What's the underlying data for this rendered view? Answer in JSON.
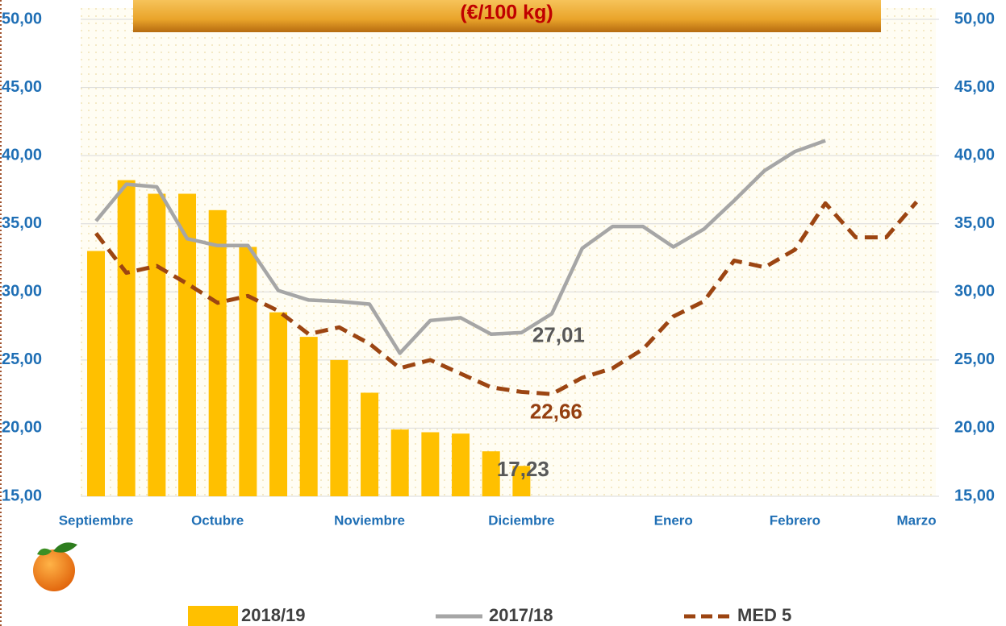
{
  "chart_data": {
    "type": "bar-line",
    "title": "(€/100 kg)",
    "categories": [
      "Septiembre",
      null,
      null,
      null,
      "Octubre",
      null,
      null,
      null,
      null,
      "Noviembre",
      null,
      null,
      null,
      null,
      "Diciembre",
      null,
      null,
      null,
      null,
      "Enero",
      null,
      null,
      null,
      "Febrero",
      null,
      null,
      null,
      "Marzo"
    ],
    "series": [
      {
        "name": "2018/19",
        "type": "bar",
        "color": "#ffc000",
        "values": [
          33.0,
          38.2,
          37.2,
          37.2,
          36.0,
          33.3,
          28.5,
          26.7,
          25.0,
          22.6,
          19.9,
          19.7,
          19.6,
          18.3,
          17.23,
          null,
          null,
          null,
          null,
          null,
          null,
          null,
          null,
          null,
          null,
          null,
          null,
          null
        ],
        "value_labels": [
          null,
          null,
          null,
          null,
          null,
          null,
          null,
          null,
          null,
          null,
          null,
          null,
          null,
          null,
          "17,23",
          null,
          null,
          null,
          null,
          null,
          null,
          null,
          null,
          null,
          null,
          null,
          null,
          null
        ]
      },
      {
        "name": "2017/18",
        "type": "line",
        "color": "#a6a6a6",
        "values": [
          35.2,
          37.9,
          37.7,
          33.9,
          33.4,
          33.4,
          30.1,
          29.4,
          29.3,
          29.1,
          25.5,
          27.9,
          28.1,
          26.9,
          27.01,
          28.4,
          33.2,
          34.8,
          34.8,
          33.3,
          34.6,
          36.7,
          38.9,
          40.3,
          41.1,
          null,
          null,
          null
        ],
        "value_labels": [
          null,
          null,
          null,
          null,
          null,
          null,
          null,
          null,
          null,
          null,
          null,
          null,
          null,
          null,
          "27,01",
          null,
          null,
          null,
          null,
          null,
          null,
          null,
          null,
          null,
          null,
          null,
          null,
          null
        ]
      },
      {
        "name": "MED 5",
        "type": "dashed-line",
        "color": "#9c4512",
        "values": [
          34.3,
          31.4,
          31.9,
          30.6,
          29.2,
          29.7,
          28.6,
          26.9,
          27.4,
          26.2,
          24.4,
          25.0,
          24.0,
          23.0,
          22.66,
          22.5,
          23.7,
          24.4,
          25.8,
          28.2,
          29.3,
          32.3,
          31.8,
          33.1,
          36.5,
          34.0,
          34.0,
          36.6
        ],
        "value_labels": [
          null,
          null,
          null,
          null,
          null,
          null,
          null,
          null,
          null,
          null,
          null,
          null,
          null,
          null,
          "22,66",
          null,
          null,
          null,
          null,
          null,
          null,
          null,
          null,
          null,
          null,
          null,
          null,
          null
        ]
      }
    ],
    "ylim": [
      15,
      50
    ],
    "yticks": [
      {
        "value": 15,
        "label": "15,00"
      },
      {
        "value": 20,
        "label": "20,00"
      },
      {
        "value": 25,
        "label": "25,00"
      },
      {
        "value": 30,
        "label": "30,00"
      },
      {
        "value": 35,
        "label": "35,00"
      },
      {
        "value": 40,
        "label": "40,00"
      },
      {
        "value": 45,
        "label": "45,00"
      },
      {
        "value": 50,
        "label": "50,00"
      }
    ],
    "y2lim": [
      15,
      50
    ],
    "y2ticks": [
      {
        "value": 15,
        "label": "15,00"
      },
      {
        "value": 20,
        "label": "20,00"
      },
      {
        "value": 25,
        "label": "25,00"
      },
      {
        "value": 30,
        "label": "30,00"
      },
      {
        "value": 35,
        "label": "35,00"
      },
      {
        "value": 40,
        "label": "40,00"
      },
      {
        "value": 45,
        "label": "45,00"
      },
      {
        "value": 50,
        "label": "50,00"
      }
    ],
    "grid": true
  }
}
